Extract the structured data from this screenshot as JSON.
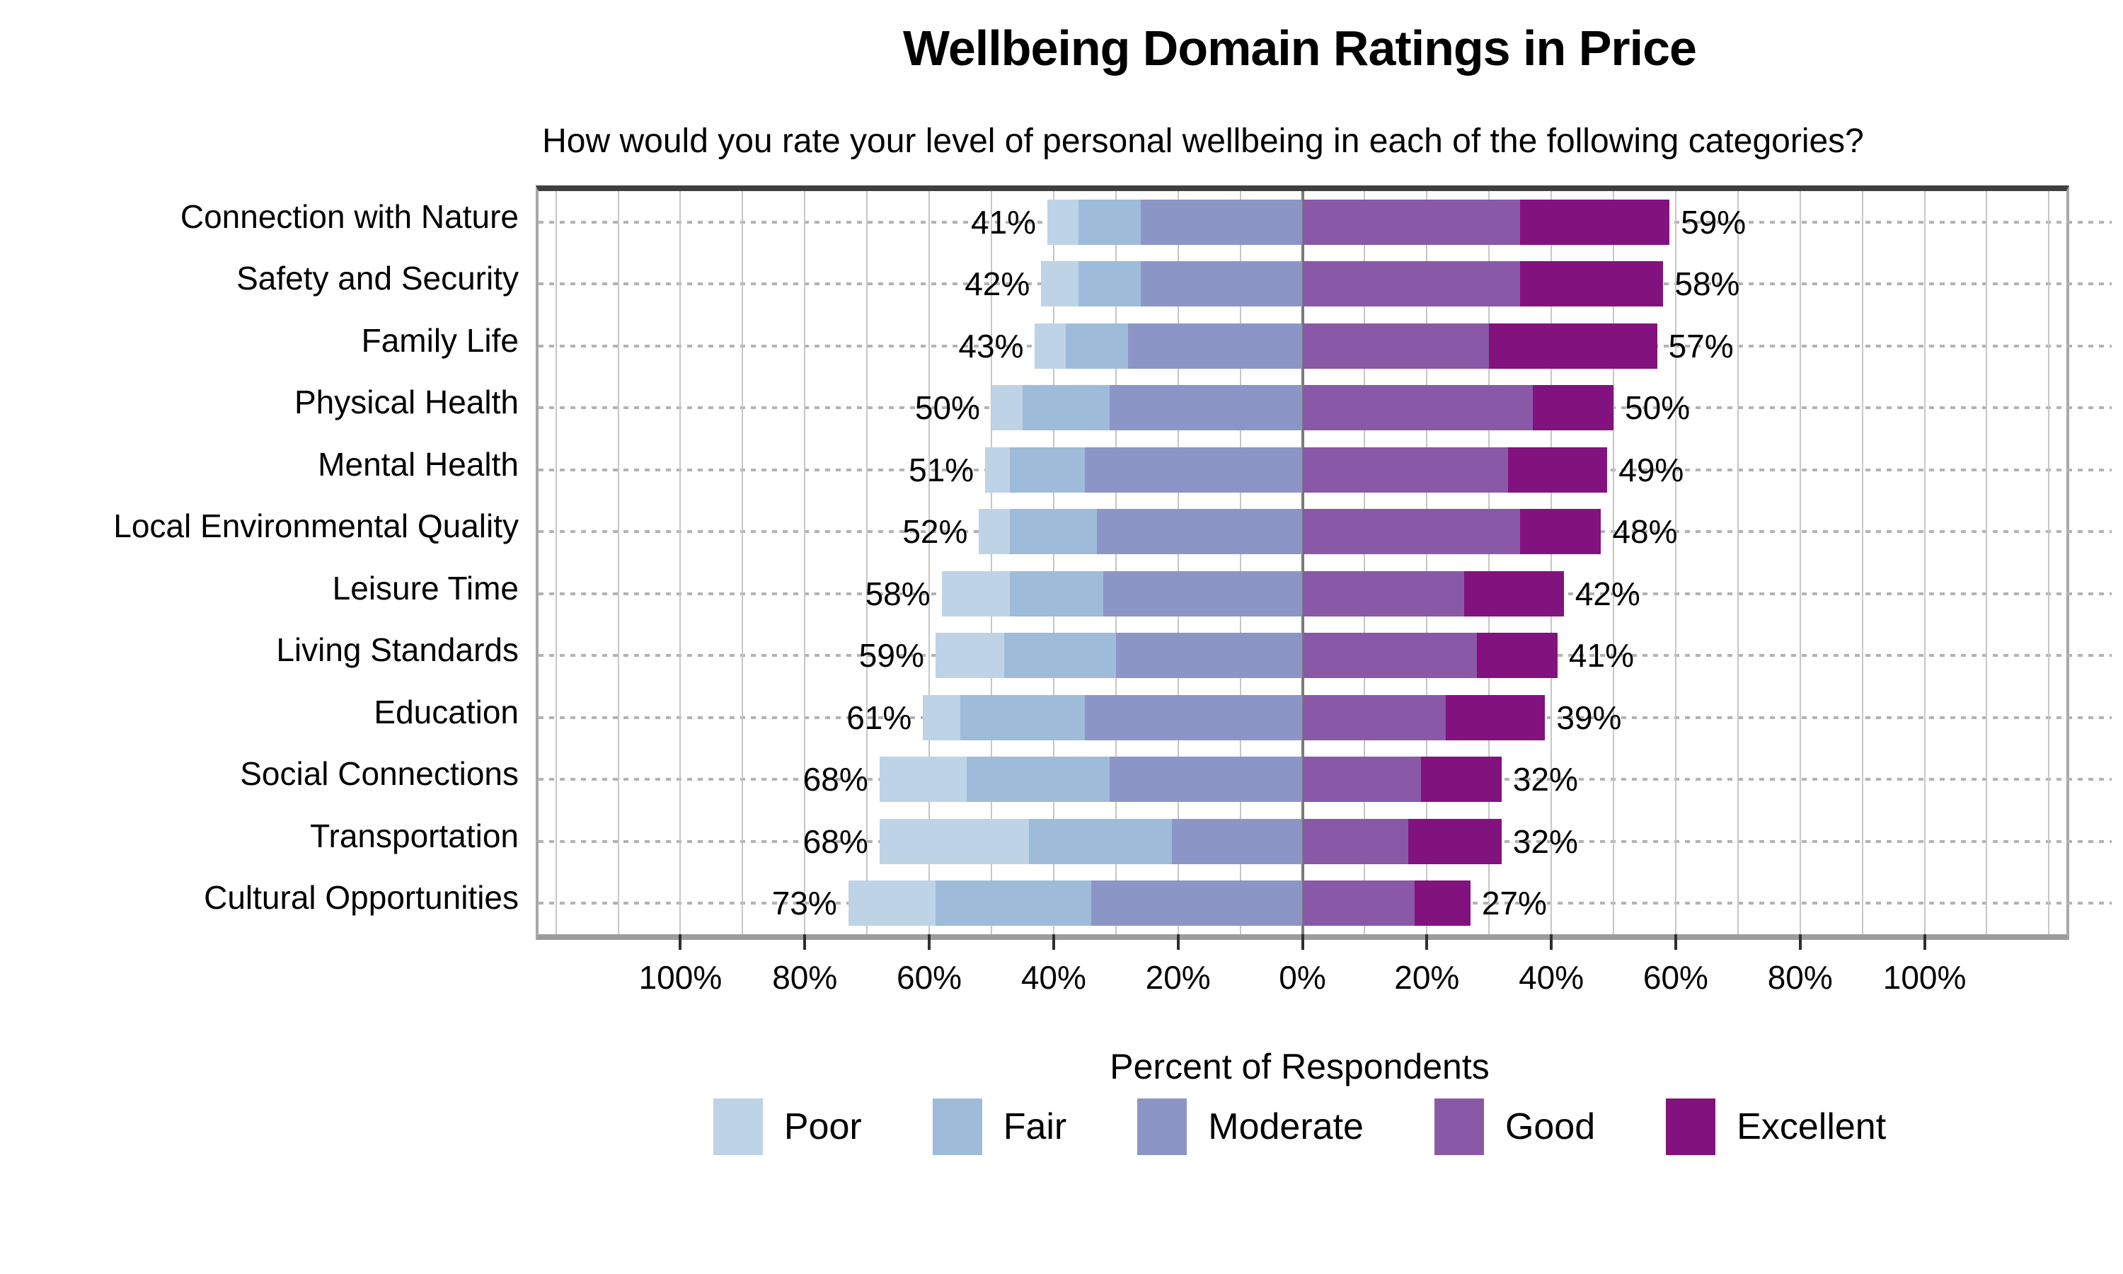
{
  "header": {
    "title": "Wellbeing Domain Ratings in Price",
    "subtitle": "How would you rate your level of personal wellbeing in each of the following categories?"
  },
  "axis": {
    "xlabel": "Percent of Respondents"
  },
  "colors": {
    "poor": "#bfd3e6",
    "fair": "#9ebcda",
    "moderate": "#8c96c6",
    "good": "#8959a8",
    "excellent": "#82127d",
    "gridline": "#c7c7c7",
    "center_line": "#7a7a7a",
    "dashed_row_line": "#b3b3b3"
  },
  "chart_data": {
    "type": "diverging-stacked-bar",
    "title": "Wellbeing Domain Ratings in Price",
    "subtitle": "How would you rate your level of personal wellbeing in each of the following categories?",
    "xlabel": "Percent of Respondents",
    "categories": [
      "Connection with Nature",
      "Safety and Security",
      "Family Life",
      "Physical Health",
      "Mental Health",
      "Local Environmental Quality",
      "Leisure Time",
      "Living Standards",
      "Education",
      "Social Connections",
      "Transportation",
      "Cultural Opportunities"
    ],
    "series": [
      {
        "name": "Poor",
        "side": "left",
        "values": [
          5,
          6,
          5,
          5,
          4,
          5,
          11,
          11,
          6,
          14,
          24,
          14
        ]
      },
      {
        "name": "Fair",
        "side": "left",
        "values": [
          10,
          10,
          10,
          14,
          12,
          14,
          15,
          18,
          20,
          23,
          23,
          25
        ]
      },
      {
        "name": "Moderate",
        "side": "left",
        "values": [
          26,
          26,
          28,
          31,
          35,
          33,
          32,
          30,
          35,
          31,
          21,
          34
        ]
      },
      {
        "name": "Good",
        "side": "right",
        "values": [
          35,
          35,
          30,
          37,
          33,
          35,
          26,
          28,
          23,
          19,
          17,
          18
        ]
      },
      {
        "name": "Excellent",
        "side": "right",
        "values": [
          24,
          23,
          27,
          13,
          16,
          13,
          16,
          13,
          16,
          13,
          15,
          9
        ]
      }
    ],
    "left_total_labels": [
      "41%",
      "42%",
      "43%",
      "50%",
      "51%",
      "52%",
      "58%",
      "59%",
      "61%",
      "68%",
      "68%",
      "73%"
    ],
    "right_total_labels": [
      "59%",
      "58%",
      "57%",
      "50%",
      "49%",
      "48%",
      "42%",
      "41%",
      "39%",
      "32%",
      "32%",
      "27%"
    ],
    "x_tick_labels": [
      "100%",
      "80%",
      "60%",
      "40%",
      "20%",
      "0%",
      "20%",
      "40%",
      "60%",
      "80%",
      "100%"
    ],
    "xlim_pct_each_side": 122.8,
    "gridline_step_pct": 10,
    "tick_step_pct": 20,
    "grid": true,
    "legend_entries": [
      "Poor",
      "Fair",
      "Moderate",
      "Good",
      "Excellent"
    ],
    "legend_position": "bottom"
  }
}
